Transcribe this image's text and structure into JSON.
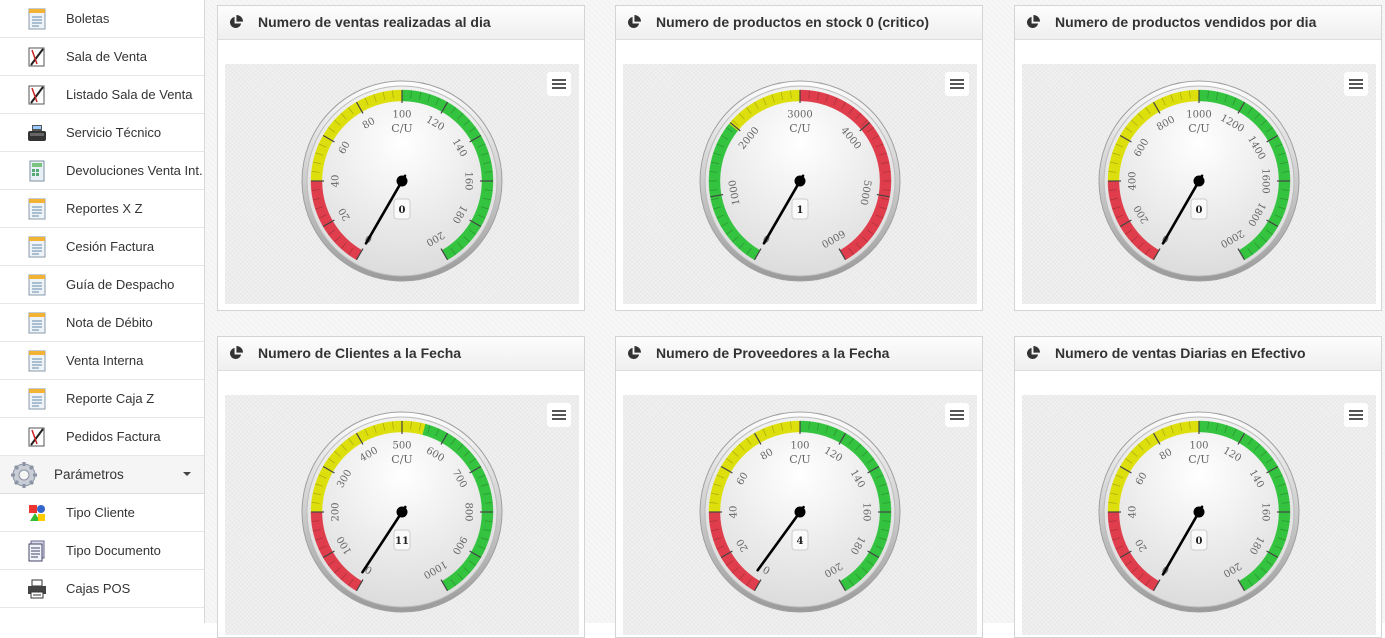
{
  "sidebar": {
    "items": [
      {
        "label": "Boletas",
        "icon": "document-list-icon"
      },
      {
        "label": "Sala de Venta",
        "icon": "pen-tool-icon"
      },
      {
        "label": "Listado Sala de Venta",
        "icon": "pen-tool-icon"
      },
      {
        "label": "Servicio Técnico",
        "icon": "cash-register-icon"
      },
      {
        "label": "Devoluciones Venta Int.",
        "icon": "calculator-doc-icon"
      },
      {
        "label": "Reportes X Z",
        "icon": "document-list-icon"
      },
      {
        "label": "Cesión Factura",
        "icon": "document-list-icon"
      },
      {
        "label": "Guía de Despacho",
        "icon": "document-list-icon"
      },
      {
        "label": "Nota de Débito",
        "icon": "document-list-icon"
      },
      {
        "label": "Venta Interna",
        "icon": "document-list-icon"
      },
      {
        "label": "Reporte Caja Z",
        "icon": "document-list-icon"
      },
      {
        "label": "Pedidos Factura",
        "icon": "pen-tool-icon"
      }
    ],
    "section": {
      "label": "Parámetros",
      "icon": "gear-icon"
    },
    "sub_items": [
      {
        "label": "Tipo Cliente",
        "icon": "colorful-shapes-icon"
      },
      {
        "label": "Tipo Documento",
        "icon": "document-stack-icon"
      },
      {
        "label": "Cajas POS",
        "icon": "printer-icon"
      }
    ]
  },
  "colors": {
    "red": "#df3d4b",
    "yellow": "#dddf0d",
    "green": "#34c33f"
  },
  "gauges": [
    {
      "title": "Numero de ventas realizadas al dia",
      "unit": "C/U",
      "min": 0,
      "max": 200,
      "value": 0,
      "tick_labels": [
        "0",
        "20",
        "40",
        "60",
        "80",
        "100",
        "120",
        "140",
        "160",
        "180",
        "200"
      ],
      "bands": [
        {
          "from": 0,
          "to": 40,
          "color": "#df3d4b"
        },
        {
          "from": 40,
          "to": 100,
          "color": "#dddf0d"
        },
        {
          "from": 100,
          "to": 200,
          "color": "#34c33f"
        }
      ]
    },
    {
      "title": "Numero de productos en stock 0 (critico)",
      "unit": "C/U",
      "min": 0,
      "max": 6000,
      "value": 1,
      "tick_labels": [
        "0",
        "1000",
        "2000",
        "3000",
        "4000",
        "5000",
        "6000"
      ],
      "bands": [
        {
          "from": 0,
          "to": 2000,
          "color": "#34c33f"
        },
        {
          "from": 2000,
          "to": 3000,
          "color": "#dddf0d"
        },
        {
          "from": 3000,
          "to": 6000,
          "color": "#df3d4b"
        }
      ]
    },
    {
      "title": "Numero de productos vendidos por dia",
      "unit": "C/U",
      "min": 0,
      "max": 2000,
      "value": 0,
      "tick_labels": [
        "0",
        "200",
        "400",
        "600",
        "800",
        "1000",
        "1200",
        "1400",
        "1600",
        "1800",
        "2000"
      ],
      "bands": [
        {
          "from": 0,
          "to": 400,
          "color": "#df3d4b"
        },
        {
          "from": 400,
          "to": 1000,
          "color": "#dddf0d"
        },
        {
          "from": 1000,
          "to": 2000,
          "color": "#34c33f"
        }
      ]
    },
    {
      "title": "Numero de Clientes a la Fecha",
      "unit": "C/U",
      "min": 0,
      "max": 1000,
      "value": 11,
      "tick_labels": [
        "0",
        "100",
        "200",
        "300",
        "400",
        "500",
        "600",
        "700",
        "800",
        "900",
        "1000"
      ],
      "bands": [
        {
          "from": 0,
          "to": 200,
          "color": "#df3d4b"
        },
        {
          "from": 200,
          "to": 550,
          "color": "#dddf0d"
        },
        {
          "from": 550,
          "to": 1000,
          "color": "#34c33f"
        }
      ]
    },
    {
      "title": "Numero de Proveedores a la Fecha",
      "unit": "C/U",
      "min": 0,
      "max": 200,
      "value": 4,
      "tick_labels": [
        "0",
        "20",
        "40",
        "60",
        "80",
        "100",
        "120",
        "140",
        "160",
        "180",
        "200"
      ],
      "bands": [
        {
          "from": 0,
          "to": 40,
          "color": "#df3d4b"
        },
        {
          "from": 40,
          "to": 100,
          "color": "#dddf0d"
        },
        {
          "from": 100,
          "to": 200,
          "color": "#34c33f"
        }
      ]
    },
    {
      "title": "Numero de ventas Diarias en Efectivo",
      "unit": "C/U",
      "min": 0,
      "max": 200,
      "value": 0,
      "tick_labels": [
        "0",
        "20",
        "40",
        "60",
        "80",
        "100",
        "120",
        "140",
        "160",
        "180",
        "200"
      ],
      "bands": [
        {
          "from": 0,
          "to": 40,
          "color": "#df3d4b"
        },
        {
          "from": 40,
          "to": 100,
          "color": "#dddf0d"
        },
        {
          "from": 100,
          "to": 200,
          "color": "#34c33f"
        }
      ]
    }
  ]
}
